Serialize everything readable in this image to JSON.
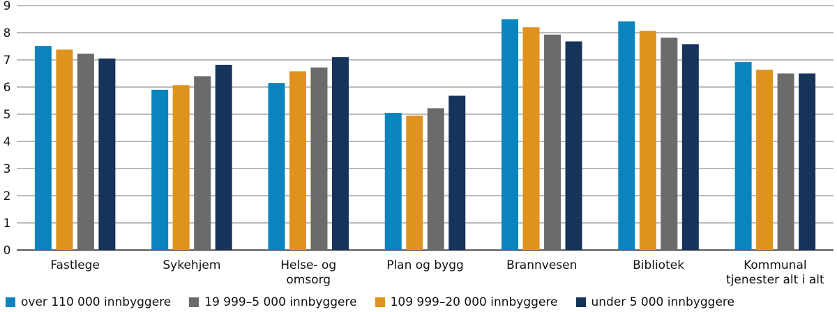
{
  "chart_data": {
    "type": "bar",
    "title": "",
    "xlabel": "",
    "ylabel": "",
    "ylim": [
      0,
      9
    ],
    "yticks": [
      "0",
      "1",
      "2",
      "3",
      "4",
      "5",
      "6",
      "7",
      "8",
      "9"
    ],
    "grid": true,
    "legend_position": "bottom",
    "categories": [
      [
        "Fastlege"
      ],
      [
        "Sykehjem"
      ],
      [
        "Helse- og",
        "omsorg"
      ],
      [
        "Plan og bygg"
      ],
      [
        "Brannvesen"
      ],
      [
        "Bibliotek"
      ],
      [
        "Kommunal",
        "tjenester alt i alt"
      ]
    ],
    "series": [
      {
        "name": "over 110 000 innbyggere",
        "color": "#0a84bf",
        "values": [
          7.51,
          5.9,
          6.15,
          5.05,
          8.5,
          8.42,
          6.92
        ]
      },
      {
        "name": "109 999–20 000 innbyggere",
        "color": "#e0921f",
        "values": [
          7.38,
          6.07,
          6.58,
          4.95,
          8.2,
          8.07,
          6.64
        ]
      },
      {
        "name": "19 999–5 000 innbyggere",
        "color": "#6b6b6b",
        "values": [
          7.23,
          6.4,
          6.72,
          5.22,
          7.93,
          7.82,
          6.5
        ]
      },
      {
        "name": "under 5 000 innbyggere",
        "color": "#16335a",
        "values": [
          7.05,
          6.82,
          7.1,
          5.68,
          7.68,
          7.58,
          6.5
        ]
      }
    ],
    "legend_order": [
      0,
      2,
      1,
      3
    ]
  }
}
